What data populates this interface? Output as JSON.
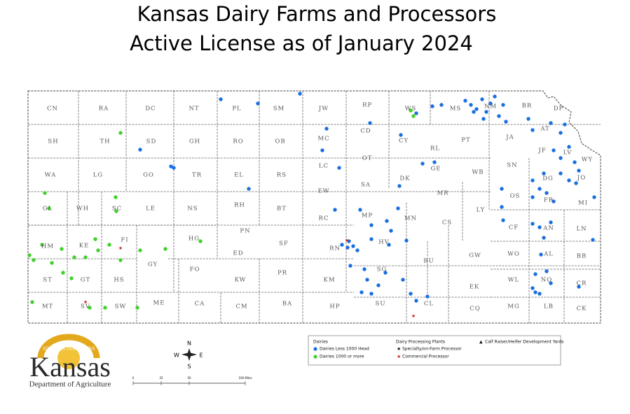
{
  "header": {
    "title_line1": "Kansas Dairy Farms and Processors",
    "title_line2": "Active License as of January 2024"
  },
  "counties": [
    "CN",
    "RA",
    "DC",
    "NT",
    "PL",
    "SM",
    "JW",
    "RP",
    "WS",
    "MS",
    "NM",
    "BR",
    "DP",
    "SH",
    "TH",
    "SD",
    "GH",
    "RO",
    "OB",
    "MC",
    "CD",
    "CY",
    "RL",
    "PT",
    "JA",
    "AT",
    "JF",
    "LV",
    "WY",
    "WA",
    "LG",
    "GO",
    "TR",
    "EL",
    "RS",
    "LC",
    "OT",
    "SA",
    "DK",
    "GE",
    "WB",
    "SN",
    "DG",
    "JO",
    "GL",
    "WH",
    "SC",
    "LE",
    "NS",
    "RH",
    "BT",
    "EW",
    "MR",
    "OS",
    "FR",
    "MI",
    "LY",
    "MP",
    "RC",
    "MN",
    "CS",
    "HM",
    "KE",
    "FI",
    "HG",
    "PN",
    "ED",
    "SF",
    "RN",
    "HV",
    "CF",
    "AN",
    "LN",
    "GY",
    "FO",
    "PR",
    "SG",
    "BU",
    "GW",
    "WO",
    "AL",
    "BB",
    "ST",
    "GT",
    "HS",
    "KW",
    "KM",
    "EK",
    "WL",
    "NO",
    "CR",
    "MT",
    "SV",
    "SW",
    "ME",
    "CA",
    "CM",
    "BA",
    "HP",
    "SU",
    "CL",
    "CQ",
    "MG",
    "LB",
    "CK"
  ],
  "legend": {
    "dairies_heading": "Dairies",
    "dairies_small": "Dairies Less 1000 Head",
    "dairies_large": "Dairies 1000 or more",
    "plants_heading": "Dairy Processing Plants",
    "plants_specialty": "Specialty/on-Farm Processor",
    "plants_commercial": "Commercial Processor",
    "calf": "Calf Raiser/Heifer Development Yards"
  },
  "logo": {
    "motto": "AD ASTRA PER ASPERA",
    "name": "Kansas",
    "department": "Department of Agriculture"
  },
  "compass": {
    "n": "N",
    "s": "S",
    "e": "E",
    "w": "W"
  },
  "scale": {
    "labels": [
      "0",
      "25",
      "50",
      "100 Miles"
    ]
  }
}
